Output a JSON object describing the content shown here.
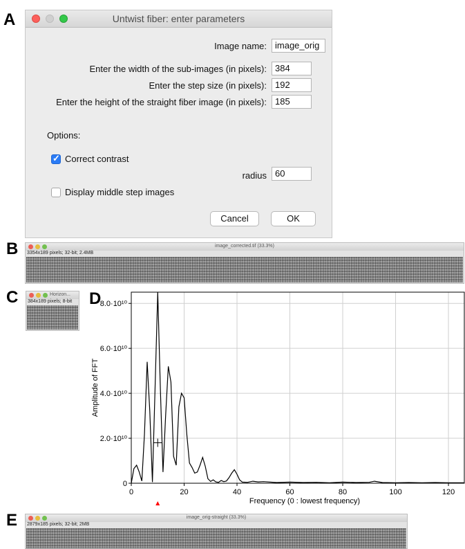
{
  "panels": {
    "a": "A",
    "b": "B",
    "c": "C",
    "d": "D",
    "e": "E"
  },
  "dialog": {
    "title": "Untwist fiber: enter parameters",
    "image_name_label": "Image name:",
    "image_name_value": "image_orig",
    "width_label": "Enter the width of the sub-images (in pixels):",
    "width_value": "384",
    "step_label": "Enter the step size (in pixels):",
    "step_value": "192",
    "height_label": "Enter the height of the straight fiber image (in pixels):",
    "height_value": "185",
    "options_label": "Options:",
    "correct_contrast_label": "Correct contrast",
    "correct_contrast_checked": true,
    "radius_label": "radius",
    "radius_value": "60",
    "display_middle_label": "Display middle step images",
    "display_middle_checked": false,
    "cancel_label": "Cancel",
    "ok_label": "OK"
  },
  "window_b": {
    "title": "image_corrected.tif (33.3%)",
    "info": "3354x189 pixels; 32-bit; 2.4MB"
  },
  "window_c": {
    "title": "Horizon...",
    "info": "384x189 pixels; 8-bit"
  },
  "window_e": {
    "title": "image_orig-straight (33.3%)",
    "info": "2879x185 pixels; 32-bit; 2MB"
  },
  "chart_data": {
    "type": "line",
    "xlabel": "Frequency (0 : lowest frequency)",
    "ylabel": "Amplitude of FFT",
    "xlim": [
      0,
      126
    ],
    "ylim": [
      0,
      85000000000
    ],
    "xticks": [
      0,
      20,
      40,
      60,
      80,
      100,
      120
    ],
    "xtick_labels": [
      "0",
      "20",
      "40",
      "60",
      "80",
      "100",
      "120"
    ],
    "yticks": [
      0,
      20000000000,
      40000000000,
      60000000000,
      80000000000
    ],
    "ytick_labels": [
      "0",
      "2.0·10¹⁰",
      "4.0·10¹⁰",
      "6.0·10¹⁰",
      "8.0·10¹⁰"
    ],
    "grid": true,
    "marker_x": 10,
    "marker_y": 18000000000,
    "arrow_color": "#ff0000",
    "series": [
      {
        "x": [
          0,
          1,
          2,
          3,
          4,
          5,
          6,
          7,
          8,
          9,
          10,
          11,
          12,
          13,
          14,
          15,
          16,
          17,
          18,
          19,
          20,
          21,
          22,
          23,
          24,
          25,
          26,
          27,
          28,
          29,
          30,
          31,
          32,
          33,
          34,
          35,
          36,
          37,
          38,
          39,
          40,
          41,
          42,
          44,
          46,
          48,
          50,
          55,
          60,
          65,
          70,
          75,
          80,
          85,
          90,
          92,
          95,
          100,
          105,
          110,
          115,
          120,
          126
        ],
        "y": [
          0,
          6500000000,
          8000000000,
          5000000000,
          1000000000,
          22000000000,
          54000000000,
          32000000000,
          500000000,
          42000000000,
          85000000000,
          42000000000,
          5000000000,
          30000000000,
          52000000000,
          45000000000,
          12000000000,
          8000000000,
          34000000000,
          40000000000,
          38000000000,
          22000000000,
          9000000000,
          7000000000,
          4500000000,
          5000000000,
          8000000000,
          11500000000,
          7500000000,
          2000000000,
          800000000,
          1500000000,
          600000000,
          400000000,
          1200000000,
          700000000,
          1000000000,
          2500000000,
          4500000000,
          6000000000,
          4000000000,
          1500000000,
          500000000,
          400000000,
          900000000,
          600000000,
          700000000,
          300000000,
          500000000,
          300000000,
          400000000,
          200000000,
          500000000,
          300000000,
          400000000,
          900000000,
          300000000,
          200000000,
          300000000,
          200000000,
          300000000,
          200000000,
          200000000
        ]
      }
    ]
  }
}
